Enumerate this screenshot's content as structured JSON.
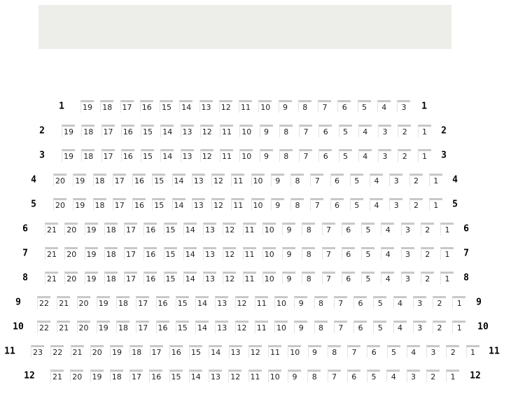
{
  "stage": {
    "color": "#ededea"
  },
  "rows": [
    {
      "label": "1",
      "seats": [
        19,
        18,
        17,
        16,
        15,
        14,
        13,
        12,
        11,
        10,
        9,
        8,
        7,
        6,
        5,
        4,
        3
      ]
    },
    {
      "label": "2",
      "seats": [
        19,
        18,
        17,
        16,
        15,
        14,
        13,
        12,
        11,
        10,
        9,
        8,
        7,
        6,
        5,
        4,
        3,
        2,
        1
      ]
    },
    {
      "label": "3",
      "seats": [
        19,
        18,
        17,
        16,
        15,
        14,
        13,
        12,
        11,
        10,
        9,
        8,
        7,
        6,
        5,
        4,
        3,
        2,
        1
      ]
    },
    {
      "label": "4",
      "seats": [
        20,
        19,
        18,
        17,
        16,
        15,
        14,
        13,
        12,
        11,
        10,
        9,
        8,
        7,
        6,
        5,
        4,
        3,
        2,
        1
      ]
    },
    {
      "label": "5",
      "seats": [
        20,
        19,
        18,
        17,
        16,
        15,
        14,
        13,
        12,
        11,
        10,
        9,
        8,
        7,
        6,
        5,
        4,
        3,
        2,
        1
      ]
    },
    {
      "label": "6",
      "seats": [
        21,
        20,
        19,
        18,
        17,
        16,
        15,
        14,
        13,
        12,
        11,
        10,
        9,
        8,
        7,
        6,
        5,
        4,
        3,
        2,
        1
      ]
    },
    {
      "label": "7",
      "seats": [
        21,
        20,
        19,
        18,
        17,
        16,
        15,
        14,
        13,
        12,
        11,
        10,
        9,
        8,
        7,
        6,
        5,
        4,
        3,
        2,
        1
      ]
    },
    {
      "label": "8",
      "seats": [
        21,
        20,
        19,
        18,
        17,
        16,
        15,
        14,
        13,
        12,
        11,
        10,
        9,
        8,
        7,
        6,
        5,
        4,
        3,
        2,
        1
      ]
    },
    {
      "label": "9",
      "seats": [
        22,
        21,
        20,
        19,
        18,
        17,
        16,
        15,
        14,
        13,
        12,
        11,
        10,
        9,
        8,
        7,
        6,
        5,
        4,
        3,
        2,
        1
      ]
    },
    {
      "label": "10",
      "seats": [
        22,
        21,
        20,
        19,
        18,
        17,
        16,
        15,
        14,
        13,
        12,
        11,
        10,
        9,
        8,
        7,
        6,
        5,
        4,
        3,
        2,
        1
      ]
    },
    {
      "label": "11",
      "seats": [
        23,
        22,
        21,
        20,
        19,
        18,
        17,
        16,
        15,
        14,
        13,
        12,
        11,
        10,
        9,
        8,
        7,
        6,
        5,
        4,
        3,
        2,
        1
      ]
    },
    {
      "label": "12",
      "seats": [
        21,
        20,
        19,
        18,
        17,
        16,
        15,
        14,
        13,
        12,
        11,
        10,
        9,
        8,
        7,
        6,
        5,
        4,
        3,
        2,
        1
      ]
    }
  ]
}
